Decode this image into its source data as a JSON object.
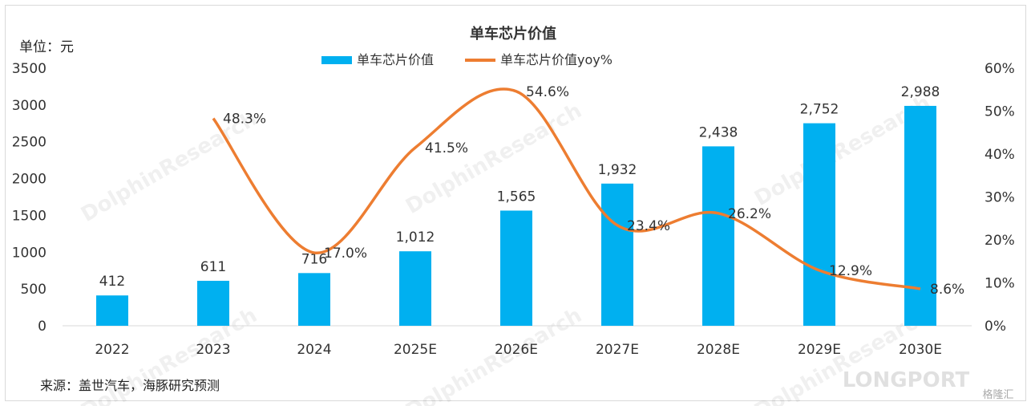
{
  "unit_label": "单位：元",
  "source_label": "来源：盖世汽车，海豚研究预测",
  "watermark": "DolphinResearch",
  "brand_mark": "LONGPORT",
  "brand_mark_small": "格隆汇",
  "chart_data": {
    "type": "bar",
    "title": "单车芯片价值",
    "categories": [
      "2022",
      "2023",
      "2024",
      "2025E",
      "2026E",
      "2027E",
      "2028E",
      "2029E",
      "2030E"
    ],
    "series": [
      {
        "name": "单车芯片价值",
        "type": "bar",
        "axis": "left",
        "color": "#00b0f0",
        "values": [
          412,
          611,
          716,
          1012,
          1565,
          1932,
          2438,
          2752,
          2988
        ],
        "labels": [
          "412",
          "611",
          "716",
          "1,012",
          "1,565",
          "1,932",
          "2,438",
          "2,752",
          "2,988"
        ]
      },
      {
        "name": "单车芯片价值yoy%",
        "type": "line",
        "axis": "right",
        "color": "#ed7d31",
        "values": [
          null,
          48.3,
          17.0,
          41.5,
          54.6,
          23.4,
          26.2,
          12.9,
          8.6
        ],
        "labels": [
          "",
          "48.3%",
          "17.0%",
          "41.5%",
          "54.6%",
          "23.4%",
          "26.2%",
          "12.9%",
          "8.6%"
        ]
      }
    ],
    "y_left": {
      "min": 0,
      "max": 3500,
      "ticks": [
        "0",
        "500",
        "1000",
        "1500",
        "2000",
        "2500",
        "3000",
        "3500"
      ]
    },
    "y_right": {
      "min": 0,
      "max": 60,
      "ticks": [
        "0%",
        "10%",
        "20%",
        "30%",
        "40%",
        "50%",
        "60%"
      ]
    },
    "grid": false,
    "legend": "top-center"
  }
}
